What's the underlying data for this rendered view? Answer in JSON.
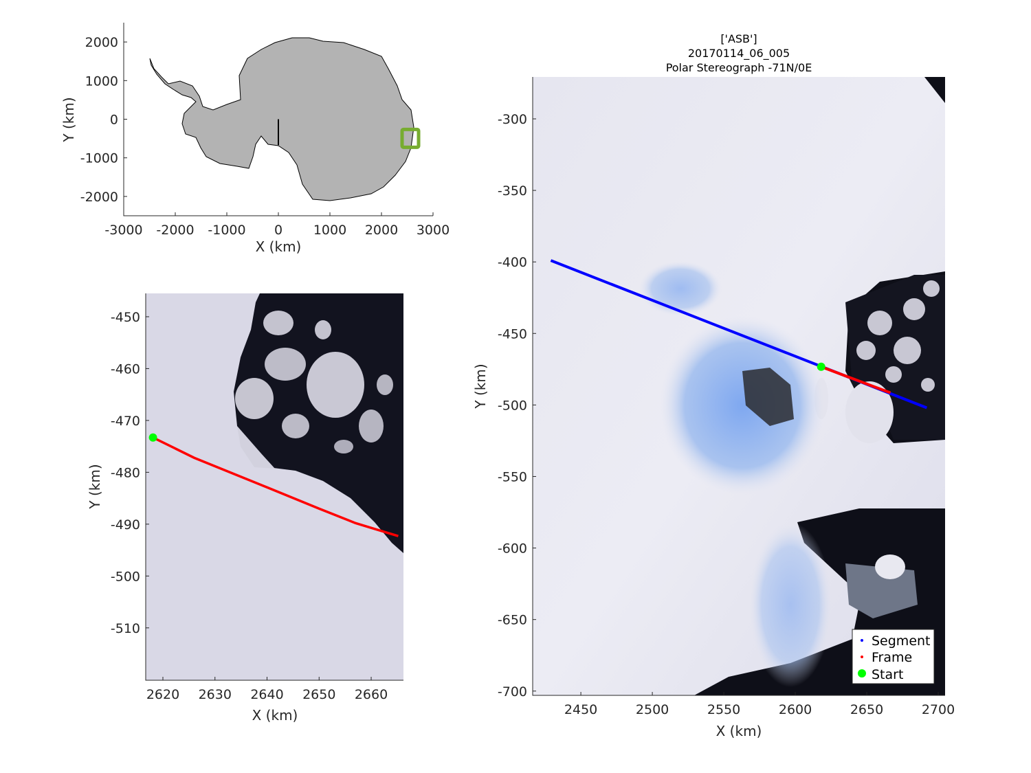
{
  "figure": {
    "overview": {
      "xlabel": "X (km)",
      "ylabel": "Y (km)",
      "xlim": [
        -3000,
        3000
      ],
      "ylim": [
        -2500,
        2500
      ],
      "xticks": [
        "-3000",
        "-2000",
        "-1000",
        "0",
        "1000",
        "2000",
        "3000"
      ],
      "yticks": [
        "2000",
        "1000",
        "0",
        "-1000",
        "-2000"
      ],
      "land_color": "#b3b3b3",
      "highlight_box_color": "#77ac30",
      "highlight_box_center": [
        2560,
        -495
      ],
      "reference_line": {
        "x": [
          0,
          0
        ],
        "y": [
          0,
          -670
        ]
      }
    },
    "zoom_frame": {
      "xlabel": "X (km)",
      "ylabel": "Y (km)",
      "xlim": [
        2616.7,
        2666.2
      ],
      "ylim": [
        -520.1,
        -445.5
      ],
      "xticks": [
        "2620",
        "2630",
        "2640",
        "2650",
        "2660"
      ],
      "yticks": [
        "-450",
        "-460",
        "-470",
        "-480",
        "-490",
        "-500",
        "-510"
      ],
      "frame": {
        "color": "#ff0000",
        "x": [
          2618.1,
          2626,
          2640,
          2650,
          2657,
          2665.2
        ],
        "y": [
          -473.3,
          -477.2,
          -482.9,
          -487.0,
          -489.8,
          -492.3
        ]
      },
      "start": {
        "color": "#00ff00",
        "x": 2618.1,
        "y": -473.3
      }
    },
    "segment_map": {
      "title_lines": [
        "['ASB']",
        "20170114_06_005",
        "Polar Stereograph -71N/0E"
      ],
      "xlabel": "X (km)",
      "ylabel": "Y (km)",
      "xlim": [
        2416.3,
        2704.8
      ],
      "ylim": [
        -703,
        -270.7
      ],
      "xticks": [
        "2450",
        "2500",
        "2550",
        "2600",
        "2650",
        "2700"
      ],
      "yticks": [
        "-300",
        "-350",
        "-400",
        "-450",
        "-500",
        "-550",
        "-600",
        "-650",
        "-700"
      ],
      "segment": {
        "color": "#0000ff",
        "x": [
          2429,
          2692
        ],
        "y": [
          -399,
          -502
        ]
      },
      "frame": {
        "color": "#ff0000",
        "x": [
          2618.1,
          2666.6
        ],
        "y": [
          -473.3,
          -491.5
        ]
      },
      "start": {
        "color": "#00ff00",
        "x": 2618.1,
        "y": -473.3
      },
      "legend": {
        "placement": "bottom-right",
        "items": [
          "Segment",
          "Frame",
          "Start"
        ]
      }
    }
  }
}
